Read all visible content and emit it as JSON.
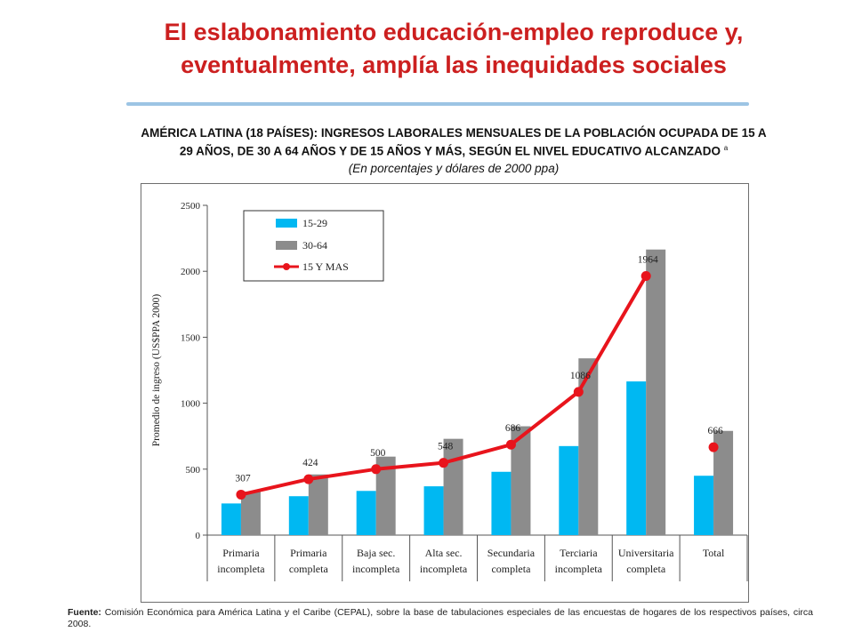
{
  "slide": {
    "title_line1": "El eslabonamiento educación-empleo reproduce y,",
    "title_line2": "eventualmente, amplía las inequidades sociales"
  },
  "chart_heading": {
    "line1": "AMÉRICA LATINA (18 PAÍSES): INGRESOS LABORALES MENSUALES DE LA POBLACIÓN OCUPADA DE 15 A",
    "line2": "29 AÑOS, DE 30 A 64 AÑOS Y DE 15 AÑOS Y MÁS, SEGÚN EL NIVEL EDUCATIVO ALCANZADO",
    "footnote_mark": "a",
    "subtitle": "(En porcentajes y dólares de 2000 ppa)"
  },
  "source": {
    "label": "Fuente:",
    "text": "Comisión Económica para América Latina y el Caribe (CEPAL), sobre la base de tabulaciones especiales de las encuestas de hogares de los respectivos países, circa 2008."
  },
  "colors": {
    "title": "#cc1f1f",
    "series_15_29": "#00b8f2",
    "series_30_64": "#8c8c8c",
    "series_15_mas": "#e8141c"
  },
  "chart_data": {
    "type": "bar",
    "title": "",
    "xlabel": "",
    "ylabel": "Promedio de ingreso (US$PPA 2000)",
    "ylim": [
      0,
      2500
    ],
    "yticks": [
      0,
      500,
      1000,
      1500,
      2000,
      2500
    ],
    "grid": false,
    "legend_position": "top-left",
    "categories": [
      [
        "Primaria",
        "incompleta"
      ],
      [
        "Primaria",
        "completa"
      ],
      [
        "Baja sec.",
        "incompleta"
      ],
      [
        "Alta sec.",
        "incompleta"
      ],
      [
        "Secundaria",
        "completa"
      ],
      [
        "Terciaria",
        "incompleta"
      ],
      [
        "Universitaria",
        "completa"
      ],
      [
        "Total"
      ]
    ],
    "series": [
      {
        "name": "15-29",
        "type": "bar",
        "values": [
          240,
          295,
          335,
          370,
          480,
          675,
          1165,
          450
        ]
      },
      {
        "name": "30-64",
        "type": "bar",
        "values": [
          330,
          460,
          595,
          730,
          825,
          1340,
          2165,
          790
        ]
      },
      {
        "name": "15 Y MAS",
        "type": "line",
        "values": [
          307,
          424,
          500,
          548,
          686,
          1086,
          1964,
          666
        ],
        "data_labels": [
          "307",
          "424",
          "500",
          "548",
          "686",
          "1086",
          "1964",
          "666"
        ],
        "connected_points": 7
      }
    ]
  }
}
